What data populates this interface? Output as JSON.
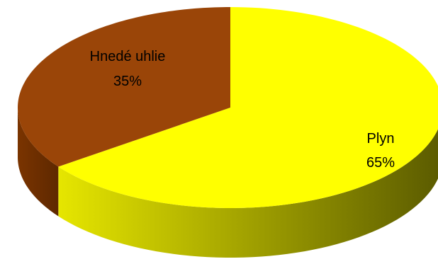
{
  "chart_data": {
    "type": "pie",
    "style": "3d",
    "start_angle_deg": 0,
    "direction": "clockwise",
    "slices": [
      {
        "label": "Plyn",
        "value": 65,
        "display": "65%",
        "color": "#ffff00",
        "side_color_light": "#e6e600",
        "side_color_dark": "#5a5a00"
      },
      {
        "label": "Hnedé uhlie",
        "value": 35,
        "display": "35%",
        "color": "#9a4508",
        "side_color_light": "#7a3400",
        "side_color_dark": "#5e2800"
      }
    ],
    "legend": "none"
  }
}
